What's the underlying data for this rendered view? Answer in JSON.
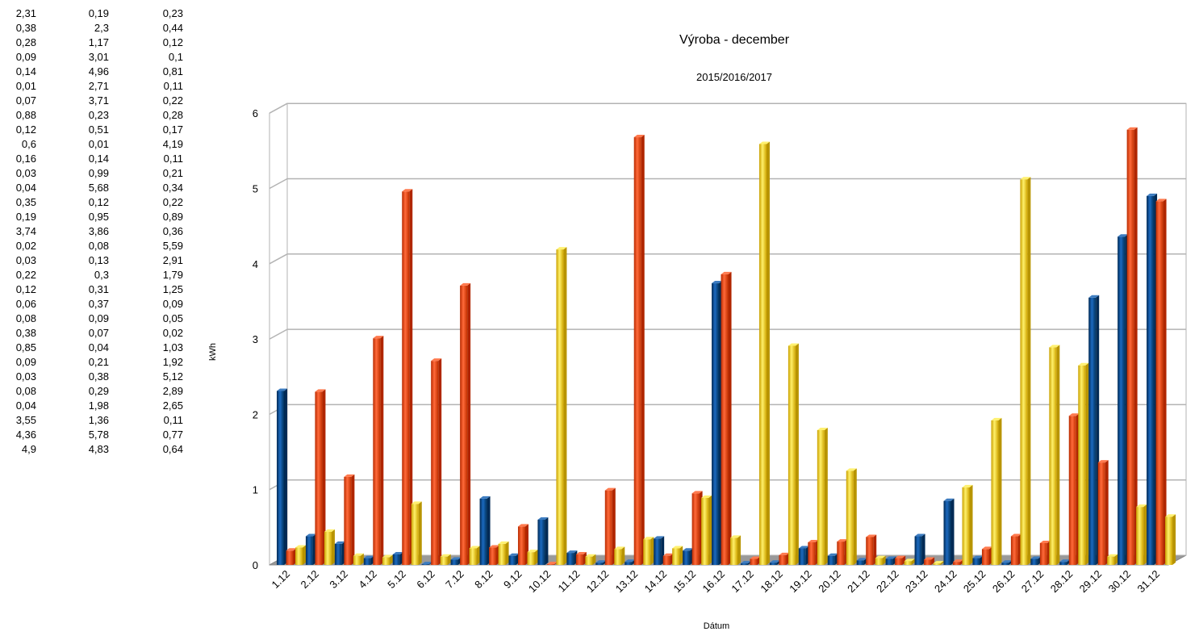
{
  "table": {
    "rows": [
      [
        "2,31",
        "0,19",
        "0,23"
      ],
      [
        "0,38",
        "2,3",
        "0,44"
      ],
      [
        "0,28",
        "1,17",
        "0,12"
      ],
      [
        "0,09",
        "3,01",
        "0,1"
      ],
      [
        "0,14",
        "4,96",
        "0,81"
      ],
      [
        "0,01",
        "2,71",
        "0,11"
      ],
      [
        "0,07",
        "3,71",
        "0,22"
      ],
      [
        "0,88",
        "0,23",
        "0,28"
      ],
      [
        "0,12",
        "0,51",
        "0,17"
      ],
      [
        "0,6",
        "0,01",
        "4,19"
      ],
      [
        "0,16",
        "0,14",
        "0,11"
      ],
      [
        "0,03",
        "0,99",
        "0,21"
      ],
      [
        "0,04",
        "5,68",
        "0,34"
      ],
      [
        "0,35",
        "0,12",
        "0,22"
      ],
      [
        "0,19",
        "0,95",
        "0,89"
      ],
      [
        "3,74",
        "3,86",
        "0,36"
      ],
      [
        "0,02",
        "0,08",
        "5,59"
      ],
      [
        "0,03",
        "0,13",
        "2,91"
      ],
      [
        "0,22",
        "0,3",
        "1,79"
      ],
      [
        "0,12",
        "0,31",
        "1,25"
      ],
      [
        "0,06",
        "0,37",
        "0,09"
      ],
      [
        "0,08",
        "0,09",
        "0,05"
      ],
      [
        "0,38",
        "0,07",
        "0,02"
      ],
      [
        "0,85",
        "0,04",
        "1,03"
      ],
      [
        "0,09",
        "0,21",
        "1,92"
      ],
      [
        "0,03",
        "0,38",
        "5,12"
      ],
      [
        "0,08",
        "0,29",
        "2,89"
      ],
      [
        "0,04",
        "1,98",
        "2,65"
      ],
      [
        "3,55",
        "1,36",
        "0,11"
      ],
      [
        "4,36",
        "5,78",
        "0,77"
      ],
      [
        "4,9",
        "4,83",
        "0,64"
      ]
    ]
  },
  "chart_data": {
    "type": "bar",
    "title": "Výroba - december",
    "subtitle": "2015/2016/2017",
    "xlabel": "Dátum",
    "ylabel": "kWh",
    "ylim": [
      0,
      6
    ],
    "yticks": [
      "0",
      "1",
      "2",
      "3",
      "4",
      "5",
      "6"
    ],
    "grid": true,
    "style": "3d-cylinder",
    "categories": [
      "1.12",
      "2.12",
      "3.12",
      "4.12",
      "5.12",
      "6.12",
      "7.12",
      "8.12",
      "9.12",
      "10.12",
      "11.12",
      "12.12",
      "13.12",
      "14.12",
      "15.12",
      "16.12",
      "17.12",
      "18.12",
      "19.12",
      "20.12",
      "21.12",
      "22.12",
      "23.12",
      "24.12",
      "25.12",
      "26.12",
      "27.12",
      "28.12",
      "29.12",
      "30.12",
      "31.12"
    ],
    "series": [
      {
        "color": "#004586",
        "values": [
          2.31,
          0.38,
          0.28,
          0.09,
          0.14,
          0.01,
          0.07,
          0.88,
          0.12,
          0.6,
          0.16,
          0.03,
          0.04,
          0.35,
          0.19,
          3.74,
          0.02,
          0.03,
          0.22,
          0.12,
          0.06,
          0.08,
          0.38,
          0.85,
          0.09,
          0.03,
          0.08,
          0.04,
          3.55,
          4.36,
          4.9
        ]
      },
      {
        "color": "#ff420e",
        "values": [
          0.19,
          2.3,
          1.17,
          3.01,
          4.96,
          2.71,
          3.71,
          0.23,
          0.51,
          0.01,
          0.14,
          0.99,
          5.68,
          0.12,
          0.95,
          3.86,
          0.08,
          0.13,
          0.3,
          0.31,
          0.37,
          0.09,
          0.07,
          0.04,
          0.21,
          0.38,
          0.29,
          1.98,
          1.36,
          5.78,
          4.83
        ]
      },
      {
        "color": "#ffd320",
        "values": [
          0.23,
          0.44,
          0.12,
          0.1,
          0.81,
          0.11,
          0.22,
          0.28,
          0.17,
          4.19,
          0.11,
          0.21,
          0.34,
          0.22,
          0.89,
          0.36,
          5.59,
          2.91,
          1.79,
          1.25,
          0.09,
          0.05,
          0.02,
          1.03,
          1.92,
          5.12,
          2.89,
          2.65,
          0.11,
          0.77,
          0.64
        ]
      }
    ]
  }
}
